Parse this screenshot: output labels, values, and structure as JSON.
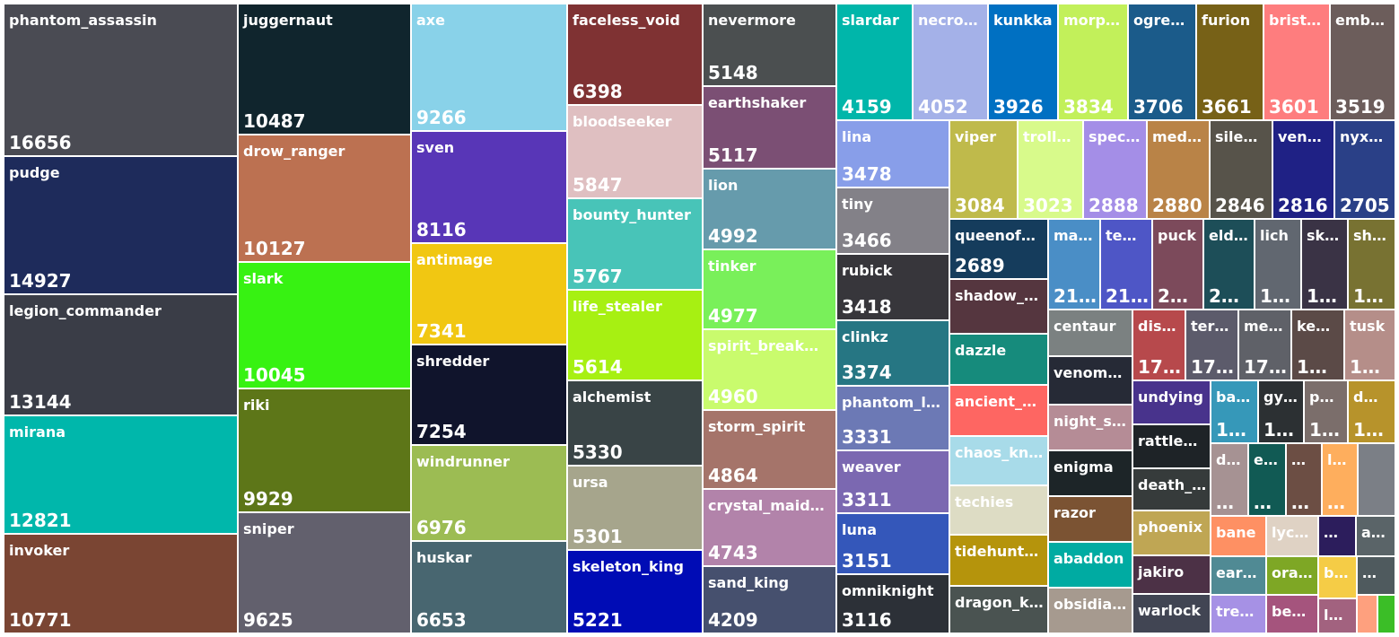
{
  "chart_data": {
    "type": "treemap",
    "title": "",
    "items": [
      {
        "name": "phantom_assassin",
        "value": "16656",
        "color": "#4a4b53"
      },
      {
        "name": "pudge",
        "value": "14927",
        "color": "#1e2b5b"
      },
      {
        "name": "legion_commander",
        "value": "13144",
        "color": "#3a3d47"
      },
      {
        "name": "mirana",
        "value": "12821",
        "color": "#00b7ab"
      },
      {
        "name": "invoker",
        "value": "10771",
        "color": "#7a4533"
      },
      {
        "name": "juggernaut",
        "value": "10487",
        "color": "#10252d"
      },
      {
        "name": "drow_ranger",
        "value": "10127",
        "color": "#bc7151"
      },
      {
        "name": "slark",
        "value": "10045",
        "color": "#37f212"
      },
      {
        "name": "riki",
        "value": "9929",
        "color": "#5d7618"
      },
      {
        "name": "sniper",
        "value": "9625",
        "color": "#62606d"
      },
      {
        "name": "axe",
        "value": "9266",
        "color": "#89d2e9"
      },
      {
        "name": "sven",
        "value": "8116",
        "color": "#5836b7"
      },
      {
        "name": "antimage",
        "value": "7341",
        "color": "#f1c712"
      },
      {
        "name": "shredder",
        "value": "7254",
        "color": "#10142c"
      },
      {
        "name": "windrunner",
        "value": "6976",
        "color": "#9cbc53"
      },
      {
        "name": "huskar",
        "value": "6653",
        "color": "#486670"
      },
      {
        "name": "faceless_void",
        "value": "6398",
        "color": "#7f3233"
      },
      {
        "name": "bloodseeker",
        "value": "5847",
        "color": "#dfbfc1"
      },
      {
        "name": "bounty_hunter",
        "value": "5767",
        "color": "#48c4b8"
      },
      {
        "name": "life_stealer",
        "value": "5614",
        "color": "#a7f012"
      },
      {
        "name": "alchemist",
        "value": "5330",
        "color": "#394446"
      },
      {
        "name": "ursa",
        "value": "5301",
        "color": "#a6a58c"
      },
      {
        "name": "skeleton_king",
        "value": "5221",
        "color": "#000cb5"
      },
      {
        "name": "nevermore",
        "value": "5148",
        "color": "#4b4f50"
      },
      {
        "name": "earthshaker",
        "value": "5117",
        "color": "#7b4f74"
      },
      {
        "name": "lion",
        "value": "4992",
        "color": "#669bac"
      },
      {
        "name": "tinker",
        "value": "4977",
        "color": "#79f05a"
      },
      {
        "name": "spirit_breaker",
        "value": "4960",
        "color": "#c9fb6d"
      },
      {
        "name": "storm_spirit",
        "value": "4864",
        "color": "#a5746a"
      },
      {
        "name": "crystal_maiden",
        "value": "4743",
        "color": "#b283aa"
      },
      {
        "name": "sand_king",
        "value": "4209",
        "color": "#46506e"
      },
      {
        "name": "slardar",
        "value": "4159",
        "color": "#00b6aa"
      },
      {
        "name": "necro…",
        "value": "4052",
        "color": "#a4b1e8"
      },
      {
        "name": "kunkka",
        "value": "3926",
        "color": "#0070c2"
      },
      {
        "name": "morp…",
        "value": "3834",
        "color": "#c2f05a"
      },
      {
        "name": "ogre…",
        "value": "3706",
        "color": "#1b5b8a"
      },
      {
        "name": "furion",
        "value": "3661",
        "color": "#776117"
      },
      {
        "name": "brist…",
        "value": "3601",
        "color": "#fe7d7e"
      },
      {
        "name": "emb…",
        "value": "3519",
        "color": "#6c5d5b"
      },
      {
        "name": "lina",
        "value": "3478",
        "color": "#889ee9"
      },
      {
        "name": "tiny",
        "value": "3466",
        "color": "#838188"
      },
      {
        "name": "rubick",
        "value": "3418",
        "color": "#37363b"
      },
      {
        "name": "clinkz",
        "value": "3374",
        "color": "#267683"
      },
      {
        "name": "phantom_l…",
        "value": "3331",
        "color": "#6c79b5"
      },
      {
        "name": "weaver",
        "value": "3311",
        "color": "#7b68b1"
      },
      {
        "name": "luna",
        "value": "3151",
        "color": "#3457ba"
      },
      {
        "name": "omniknight",
        "value": "3116",
        "color": "#2c3037"
      },
      {
        "name": "viper",
        "value": "3084",
        "color": "#bfba4b"
      },
      {
        "name": "troll_…",
        "value": "3023",
        "color": "#d8fa8b"
      },
      {
        "name": "spec…",
        "value": "2888",
        "color": "#a48ee7"
      },
      {
        "name": "med…",
        "value": "2880",
        "color": "#b98347"
      },
      {
        "name": "silen…",
        "value": "2846",
        "color": "#57534a"
      },
      {
        "name": "ven…",
        "value": "2816",
        "color": "#1f2185"
      },
      {
        "name": "nyx…",
        "value": "2705",
        "color": "#2a4087"
      },
      {
        "name": "queenof…",
        "value": "2689",
        "color": "#153c5c"
      },
      {
        "name": "shadow_…",
        "value": "",
        "color": "#55363f"
      },
      {
        "name": "dazzle",
        "value": "",
        "color": "#168b7c"
      },
      {
        "name": "ancient_…",
        "value": "",
        "color": "#fe6662"
      },
      {
        "name": "chaos_kn…",
        "value": "",
        "color": "#a8dbe9"
      },
      {
        "name": "techies",
        "value": "",
        "color": "#dddcc4"
      },
      {
        "name": "tidehunter",
        "value": "",
        "color": "#b5940c"
      },
      {
        "name": "dragon_k…",
        "value": "",
        "color": "#4a5351"
      },
      {
        "name": "ma…",
        "value": "21…",
        "color": "#4a8ec6"
      },
      {
        "name": "te…",
        "value": "21…",
        "color": "#4e56c6"
      },
      {
        "name": "puck",
        "value": "2…",
        "color": "#7c4a5b"
      },
      {
        "name": "eld…",
        "value": "2…",
        "color": "#1d4e58"
      },
      {
        "name": "lich",
        "value": "1…",
        "color": "#616770"
      },
      {
        "name": "sk…",
        "value": "1…",
        "color": "#3a3345"
      },
      {
        "name": "sh…",
        "value": "1…",
        "color": "#787232"
      },
      {
        "name": "centaur",
        "value": "",
        "color": "#7b8181"
      },
      {
        "name": "venom…",
        "value": "",
        "color": "#262a36"
      },
      {
        "name": "night_s…",
        "value": "",
        "color": "#b58c96"
      },
      {
        "name": "enigma",
        "value": "",
        "color": "#1d2528"
      },
      {
        "name": "razor",
        "value": "",
        "color": "#7b5333"
      },
      {
        "name": "abaddon",
        "value": "",
        "color": "#00aba2"
      },
      {
        "name": "obsidia…",
        "value": "",
        "color": "#a69a8f"
      },
      {
        "name": "dis…",
        "value": "17…",
        "color": "#b7494c"
      },
      {
        "name": "ter…",
        "value": "17…",
        "color": "#5c5b6b"
      },
      {
        "name": "me…",
        "value": "17…",
        "color": "#5f6168"
      },
      {
        "name": "ke…",
        "value": "1…",
        "color": "#5b4a47"
      },
      {
        "name": "tusk",
        "value": "1…",
        "color": "#b58e89"
      },
      {
        "name": "undying",
        "value": "",
        "color": "#48338c"
      },
      {
        "name": "rattlet…",
        "value": "",
        "color": "#1e2327"
      },
      {
        "name": "death_…",
        "value": "",
        "color": "#363b3b"
      },
      {
        "name": "phoenix",
        "value": "",
        "color": "#bfa654"
      },
      {
        "name": "jakiro",
        "value": "",
        "color": "#4c3146"
      },
      {
        "name": "warlock",
        "value": "",
        "color": "#414553"
      },
      {
        "name": "ba…",
        "value": "1…",
        "color": "#3698b9"
      },
      {
        "name": "gy…",
        "value": "1…",
        "color": "#2c3033"
      },
      {
        "name": "p…",
        "value": "1…",
        "color": "#7b6e6b"
      },
      {
        "name": "d…",
        "value": "1…",
        "color": "#b7932b"
      },
      {
        "name": "d…",
        "value": "…",
        "color": "#a69293"
      },
      {
        "name": "e…",
        "value": "…",
        "color": "#115a54"
      },
      {
        "name": "…",
        "value": "…",
        "color": "#6c4e44"
      },
      {
        "name": "l…",
        "value": "…",
        "color": "#feae5d"
      },
      {
        "name": "",
        "value": "",
        "color": "#7b7f86"
      },
      {
        "name": "bane",
        "value": "",
        "color": "#fe9063"
      },
      {
        "name": "lycan",
        "value": "",
        "color": "#dfd2c4"
      },
      {
        "name": "…",
        "value": "",
        "color": "#2c1d5c"
      },
      {
        "name": "a…",
        "value": "",
        "color": "#5a6468"
      },
      {
        "name": "ear…",
        "value": "",
        "color": "#508a94"
      },
      {
        "name": "ora…",
        "value": "",
        "color": "#7ea725"
      },
      {
        "name": "b…",
        "value": "",
        "color": "#f5cc46"
      },
      {
        "name": "…",
        "value": "",
        "color": "#4f5a5e"
      },
      {
        "name": "tre…",
        "value": "",
        "color": "#a691e5"
      },
      {
        "name": "be…",
        "value": "",
        "color": "#a5547d"
      },
      {
        "name": "l…",
        "value": "",
        "color": "#a2627f"
      },
      {
        "name": "",
        "value": "",
        "color": "#fea07e"
      },
      {
        "name": "",
        "value": "",
        "color": "#3bbe27"
      }
    ]
  }
}
